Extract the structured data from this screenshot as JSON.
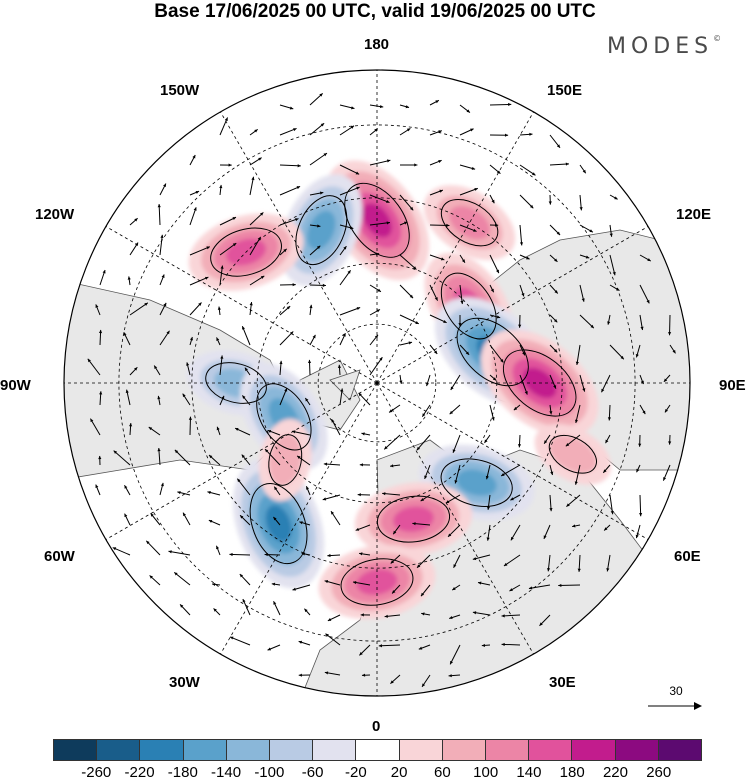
{
  "title": "Base 17/06/2025 00 UTC, valid 19/06/2025 00 UTC",
  "brand": "MODES",
  "brand_mark": "©",
  "longitude_labels": {
    "lon_180": "180",
    "lon_150e": "150E",
    "lon_120e": "120E",
    "lon_90e": "90E",
    "lon_60e": "60E",
    "lon_30e": "30E",
    "lon_0": "0",
    "lon_30w": "30W",
    "lon_60w": "60W",
    "lon_90w": "90W",
    "lon_120w": "120W",
    "lon_150w": "150W"
  },
  "reference_vector": {
    "value": "30"
  },
  "colorbar": {
    "colors": [
      "#0e3b5c",
      "#195d8a",
      "#2a80b4",
      "#5aa1cb",
      "#8ab7d9",
      "#b9cbe4",
      "#e2e2ef",
      "#ffffff",
      "#f9d5d8",
      "#f2aeb8",
      "#ec85a6",
      "#e1529c",
      "#c21c8d",
      "#8c0a80",
      "#5c0a70"
    ],
    "ticks": [
      "-260",
      "-220",
      "-180",
      "-140",
      "-100",
      "-60",
      "-20",
      "20",
      "60",
      "100",
      "140",
      "180",
      "220",
      "260"
    ]
  },
  "chart_data": {
    "type": "polar-stereographic-map",
    "projection": "north-polar-stereographic",
    "field": "filled anomaly contours with wind vectors",
    "levels": [
      -260,
      -220,
      -180,
      -140,
      -100,
      -60,
      -20,
      20,
      60,
      100,
      140,
      180,
      220,
      260
    ],
    "reference_vector": 30,
    "anomalies": [
      {
        "lon": 180,
        "lat": 50,
        "value": 180,
        "sign": "positive"
      },
      {
        "lon": 150,
        "lat": 45,
        "value": 100,
        "sign": "positive"
      },
      {
        "lon": 200,
        "lat": 50,
        "value": -140,
        "sign": "negative"
      },
      {
        "lon": 225,
        "lat": 45,
        "value": 140,
        "sign": "positive"
      },
      {
        "lon": 130,
        "lat": 60,
        "value": 140,
        "sign": "positive"
      },
      {
        "lon": 105,
        "lat": 60,
        "value": -180,
        "sign": "negative"
      },
      {
        "lon": 90,
        "lat": 50,
        "value": 180,
        "sign": "positive"
      },
      {
        "lon": 70,
        "lat": 40,
        "value": 60,
        "sign": "positive"
      },
      {
        "lon": 45,
        "lat": 55,
        "value": -140,
        "sign": "negative"
      },
      {
        "lon": 15,
        "lat": 55,
        "value": 140,
        "sign": "positive"
      },
      {
        "lon": 0,
        "lat": 42,
        "value": 140,
        "sign": "positive"
      },
      {
        "lon": 325,
        "lat": 48,
        "value": -180,
        "sign": "negative"
      },
      {
        "lon": 270,
        "lat": 55,
        "value": -100,
        "sign": "negative"
      },
      {
        "lon": 290,
        "lat": 65,
        "value": -140,
        "sign": "negative"
      },
      {
        "lon": 310,
        "lat": 60,
        "value": 60,
        "sign": "positive"
      }
    ]
  }
}
